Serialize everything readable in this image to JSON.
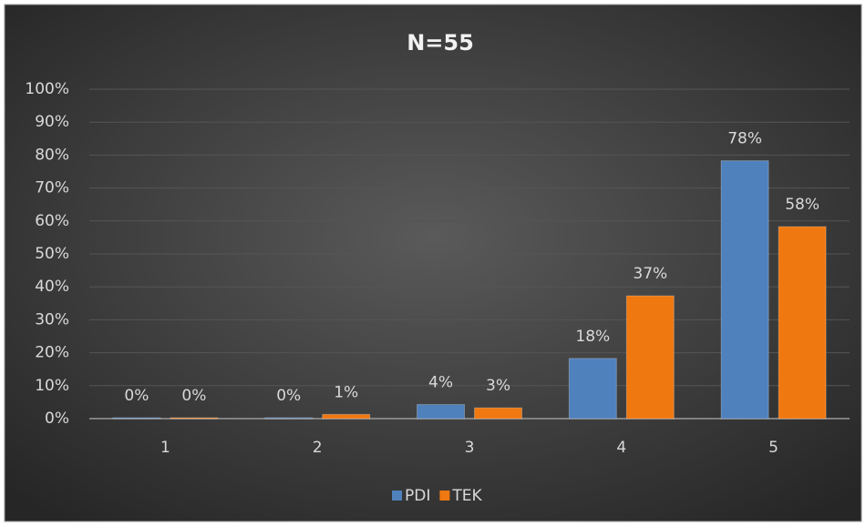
{
  "chart_data": {
    "type": "bar",
    "title": "N=55",
    "categories": [
      "1",
      "2",
      "3",
      "4",
      "5"
    ],
    "series": [
      {
        "name": "PDI",
        "color": "#4f81bd",
        "values": [
          0,
          0,
          4,
          18,
          78
        ],
        "value_labels": [
          "0%",
          "0%",
          "4%",
          "18%",
          "78%"
        ]
      },
      {
        "name": "TEK",
        "color": "#f07810",
        "values": [
          0,
          1,
          3,
          37,
          58
        ],
        "value_labels": [
          "0%",
          "1%",
          "3%",
          "37%",
          "58%"
        ]
      }
    ],
    "ylim": [
      0,
      100
    ],
    "yticks": [
      {
        "value": 0,
        "label": "0%"
      },
      {
        "value": 10,
        "label": "10%"
      },
      {
        "value": 20,
        "label": "20%"
      },
      {
        "value": 30,
        "label": "30%"
      },
      {
        "value": 40,
        "label": "40%"
      },
      {
        "value": 50,
        "label": "50%"
      },
      {
        "value": 60,
        "label": "60%"
      },
      {
        "value": 70,
        "label": "70%"
      },
      {
        "value": 80,
        "label": "80%"
      },
      {
        "value": 90,
        "label": "90%"
      },
      {
        "value": 100,
        "label": "100%"
      }
    ],
    "grid": true,
    "legend": "bottom"
  }
}
